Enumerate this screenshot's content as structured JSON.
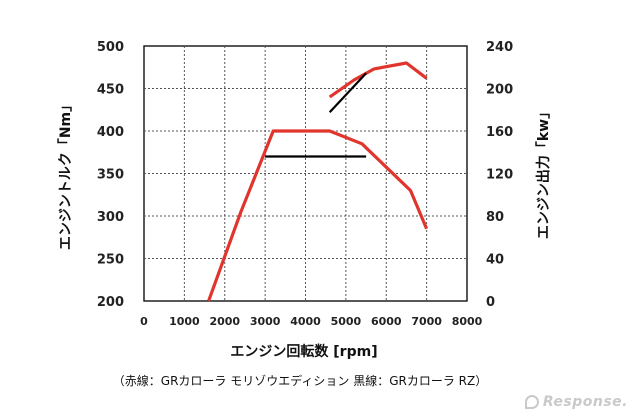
{
  "chart_data": {
    "type": "line",
    "xlabel": "エンジン回転数 [rpm]",
    "ylabel_left": "エンジントルク「Nm」",
    "ylabel_right": "エンジン出力「kw」",
    "caption": "（赤線：GRカローラ モリゾウエディション 黒線：GRカローラ RZ）",
    "xlim": [
      0,
      8000
    ],
    "ylim_left": [
      200,
      500
    ],
    "ylim_right": [
      0,
      240
    ],
    "x_ticks": [
      "0",
      "1000",
      "2000",
      "3000",
      "4000",
      "5000",
      "6000",
      "7000",
      "8000"
    ],
    "y_left_ticks": [
      "200",
      "250",
      "300",
      "350",
      "400",
      "450",
      "500"
    ],
    "y_right_ticks": [
      "0",
      "40",
      "80",
      "120",
      "160",
      "200",
      "240"
    ],
    "grid": true,
    "colors": {
      "red": "#e0342c",
      "black": "#000000",
      "grid": "#555555"
    },
    "series": [
      {
        "color": "red",
        "axis": "left",
        "x": [
          1600,
          2400,
          3200,
          4600,
          5400,
          6600,
          7000
        ],
        "y": [
          200,
          305,
          400,
          400,
          385,
          330,
          285
        ]
      },
      {
        "color": "red",
        "axis": "left",
        "x": [
          4600,
          5200,
          5700,
          6500,
          7000
        ],
        "y": [
          440,
          460,
          473,
          480,
          462
        ]
      },
      {
        "color": "black",
        "axis": "left",
        "x": [
          3000,
          5500
        ],
        "y": [
          370,
          370
        ]
      },
      {
        "color": "black",
        "axis": "left",
        "x": [
          4600,
          5500
        ],
        "y": [
          422,
          468
        ]
      }
    ]
  },
  "watermark": "Response."
}
